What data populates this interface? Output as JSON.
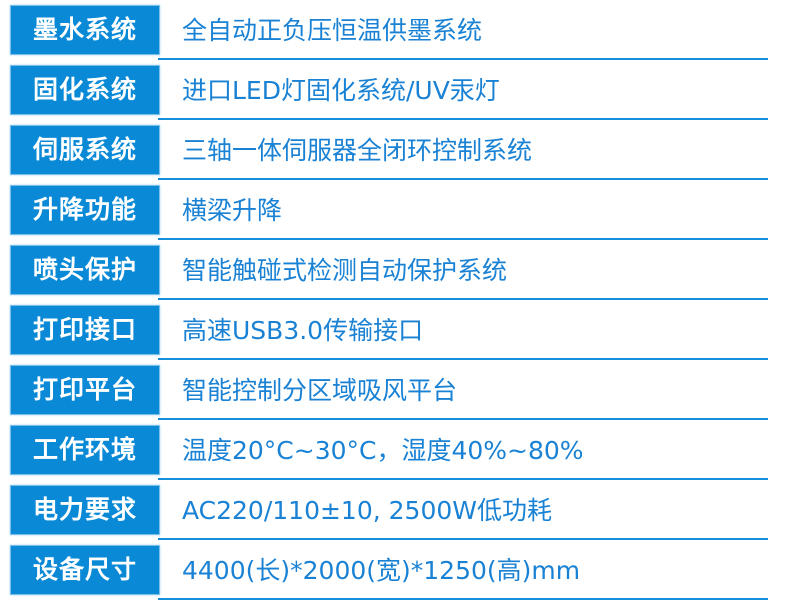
{
  "accent_color": "#0a8ad6",
  "specs": [
    {
      "label": "墨水系统",
      "value": "全自动正负压恒温供墨系统"
    },
    {
      "label": "固化系统",
      "value": "进口LED灯固化系统/UV汞灯"
    },
    {
      "label": "伺服系统",
      "value": "三轴一体伺服器全闭环控制系统"
    },
    {
      "label": "升降功能",
      "value": "横梁升降"
    },
    {
      "label": "喷头保护",
      "value": "智能触碰式检测自动保护系统"
    },
    {
      "label": "打印接口",
      "value": "高速USB3.0传输接口"
    },
    {
      "label": "打印平台",
      "value": "智能控制分区域吸风平台"
    },
    {
      "label": "工作环境",
      "value": "温度20°C~30°C，湿度40%~80%"
    },
    {
      "label": "电力要求",
      "value": "AC220/110±10, 2500W低功耗"
    },
    {
      "label": "设备尺寸",
      "value": "4400(长)*2000(宽)*1250(高)mm"
    }
  ]
}
